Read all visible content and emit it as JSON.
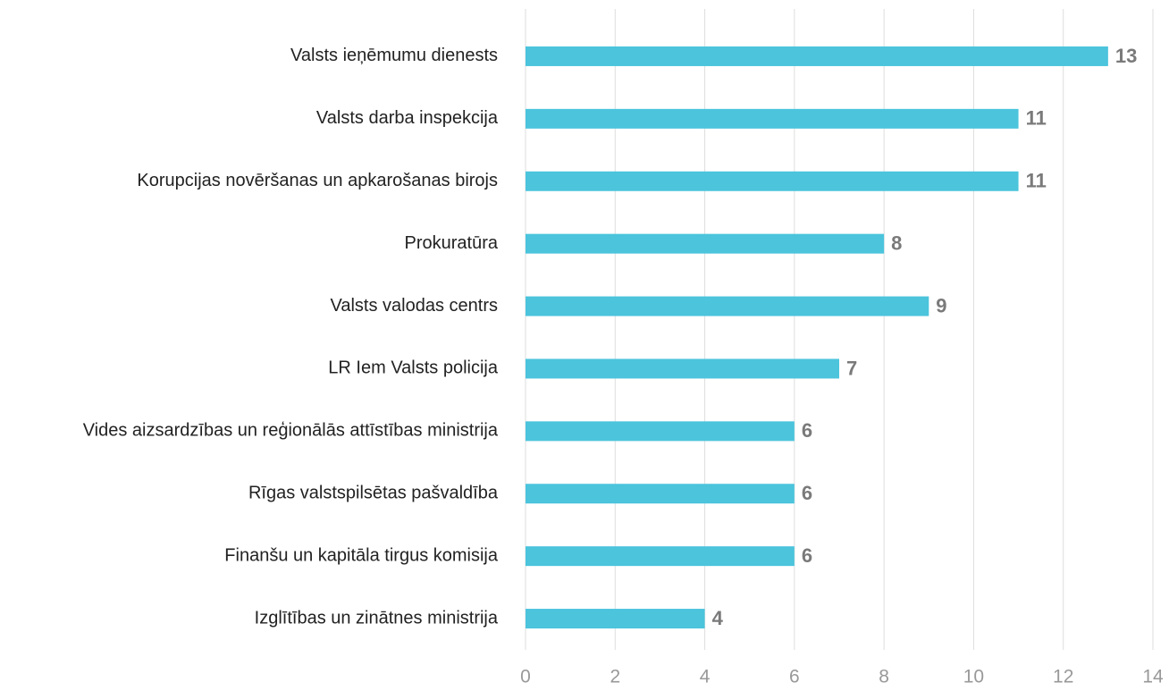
{
  "chart_data": {
    "type": "bar",
    "orientation": "horizontal",
    "categories": [
      "Valsts ieņēmumu dienests",
      "Valsts darba inspekcija",
      "Korupcijas novēršanas un apkarošanas birojs",
      "Prokuratūra",
      "Valsts valodas centrs",
      "LR Iem Valsts policija",
      "Vides aizsardzības un reģionālās attīstības ministrija",
      "Rīgas valstspilsētas pašvaldība",
      "Finanšu un kapitāla tirgus komisija",
      "Izglītības un zinātnes ministrija"
    ],
    "values": [
      13,
      11,
      11,
      8,
      9,
      7,
      6,
      6,
      6,
      4
    ],
    "color": "#4bc4dc",
    "xlim": [
      0,
      14
    ],
    "xticks": [
      0,
      2,
      4,
      6,
      8,
      10,
      12,
      14
    ],
    "grid": true
  }
}
